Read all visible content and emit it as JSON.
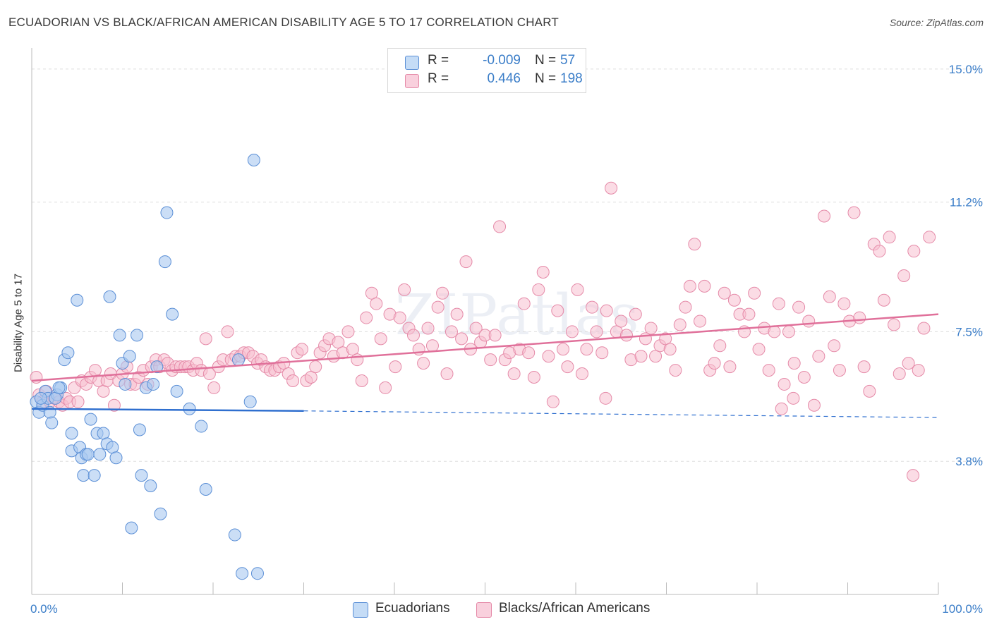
{
  "title": "ECUADORIAN VS BLACK/AFRICAN AMERICAN DISABILITY AGE 5 TO 17 CORRELATION CHART",
  "source": "Source: ZipAtlas.com",
  "watermark": "ZIPatlas",
  "legend": {
    "rows": [
      {
        "r_label": "R =",
        "r_value": "-0.009",
        "n_label": "N =",
        "n_value": "57"
      },
      {
        "r_label": "R =",
        "r_value": "0.446",
        "n_label": "N =",
        "n_value": "198"
      }
    ]
  },
  "bottom_legend": {
    "ecuadorians": "Ecuadorians",
    "blacks": "Blacks/African Americans"
  },
  "colors": {
    "blue_fill": "#a8c8f0",
    "blue_stroke": "#5b8fd6",
    "blue_line": "#2f6fcf",
    "pink_fill": "#f7c0d0",
    "pink_stroke": "#e58aa8",
    "pink_line": "#e0709a",
    "axis_label": "#3a7dc8",
    "grid": "#dddddd"
  },
  "chart_data": {
    "type": "scatter",
    "title": "ECUADORIAN VS BLACK/AFRICAN AMERICAN DISABILITY AGE 5 TO 17 CORRELATION CHART",
    "xlabel": "",
    "ylabel": "Disability Age 5 to 17",
    "xlim": [
      0,
      100
    ],
    "ylim": [
      0,
      15.4
    ],
    "x_tick_labels": [
      "0.0%",
      "100.0%"
    ],
    "y_ticks": [
      3.8,
      7.5,
      11.2,
      15.0
    ],
    "y_tick_labels": [
      "3.8%",
      "7.5%",
      "11.2%",
      "15.0%"
    ],
    "grid": true,
    "legend_placement": "top-center",
    "series": [
      {
        "name": "Ecuadorians",
        "trend": {
          "x": [
            0,
            30
          ],
          "y": [
            5.3,
            5.24
          ],
          "dashed_to": [
            100,
            5.05
          ]
        },
        "points": [
          [
            0.5,
            5.5
          ],
          [
            0.8,
            5.2
          ],
          [
            1.2,
            5.4
          ],
          [
            1.5,
            5.8
          ],
          [
            1.8,
            5.6
          ],
          [
            2,
            5.2
          ],
          [
            2.2,
            4.9
          ],
          [
            2.8,
            5.7
          ],
          [
            3.2,
            5.9
          ],
          [
            3.6,
            6.7
          ],
          [
            4.0,
            6.9
          ],
          [
            4.4,
            4.6
          ],
          [
            4.4,
            4.1
          ],
          [
            5.0,
            8.4
          ],
          [
            5.3,
            4.2
          ],
          [
            5.5,
            3.9
          ],
          [
            5.7,
            3.4
          ],
          [
            6.0,
            4.0
          ],
          [
            6.2,
            4.0
          ],
          [
            6.5,
            5.0
          ],
          [
            6.9,
            3.4
          ],
          [
            7.2,
            4.6
          ],
          [
            7.5,
            4.0
          ],
          [
            7.9,
            4.6
          ],
          [
            8.3,
            4.3
          ],
          [
            8.6,
            8.5
          ],
          [
            8.9,
            4.2
          ],
          [
            9.3,
            3.9
          ],
          [
            9.7,
            7.4
          ],
          [
            10.0,
            6.6
          ],
          [
            10.3,
            6.0
          ],
          [
            10.8,
            6.8
          ],
          [
            11.0,
            1.9
          ],
          [
            11.6,
            7.4
          ],
          [
            11.9,
            4.7
          ],
          [
            12.1,
            3.4
          ],
          [
            12.6,
            5.9
          ],
          [
            13.1,
            3.1
          ],
          [
            13.4,
            6.0
          ],
          [
            13.8,
            6.5
          ],
          [
            14.2,
            2.3
          ],
          [
            14.7,
            9.5
          ],
          [
            14.9,
            10.9
          ],
          [
            15.5,
            8.0
          ],
          [
            16.0,
            5.8
          ],
          [
            17.4,
            5.3
          ],
          [
            18.7,
            4.8
          ],
          [
            19.2,
            3.0
          ],
          [
            22.4,
            1.7
          ],
          [
            22.8,
            6.7
          ],
          [
            23.2,
            0.6
          ],
          [
            24.1,
            5.5
          ],
          [
            24.5,
            12.4
          ],
          [
            24.9,
            0.6
          ],
          [
            1.0,
            5.6
          ],
          [
            2.6,
            5.6
          ],
          [
            3.0,
            5.9
          ]
        ]
      },
      {
        "name": "Blacks/African Americans",
        "trend": {
          "x": [
            0,
            100
          ],
          "y": [
            6.1,
            8.0
          ]
        },
        "points": [
          [
            0.5,
            6.2
          ],
          [
            0.8,
            5.7
          ],
          [
            1.2,
            5.5
          ],
          [
            1.6,
            5.8
          ],
          [
            2.0,
            5.5
          ],
          [
            2.5,
            5.6
          ],
          [
            3.0,
            5.5
          ],
          [
            3.4,
            5.4
          ],
          [
            3.8,
            5.6
          ],
          [
            4.2,
            5.5
          ],
          [
            4.7,
            5.9
          ],
          [
            5.1,
            5.5
          ],
          [
            5.5,
            6.1
          ],
          [
            6.0,
            6.0
          ],
          [
            6.5,
            6.2
          ],
          [
            7.0,
            6.4
          ],
          [
            7.4,
            6.1
          ],
          [
            7.9,
            5.8
          ],
          [
            8.3,
            6.1
          ],
          [
            8.7,
            6.3
          ],
          [
            9.1,
            5.4
          ],
          [
            9.6,
            6.1
          ],
          [
            10.0,
            6.3
          ],
          [
            10.5,
            6.5
          ],
          [
            10.9,
            6.0
          ],
          [
            11.4,
            6.0
          ],
          [
            11.8,
            6.2
          ],
          [
            12.3,
            6.4
          ],
          [
            12.8,
            6.0
          ],
          [
            13.2,
            6.5
          ],
          [
            13.7,
            6.7
          ],
          [
            14.1,
            6.5
          ],
          [
            14.6,
            6.7
          ],
          [
            15.0,
            6.6
          ],
          [
            15.5,
            6.4
          ],
          [
            15.9,
            6.5
          ],
          [
            16.4,
            6.5
          ],
          [
            16.9,
            6.5
          ],
          [
            17.3,
            6.5
          ],
          [
            17.8,
            6.4
          ],
          [
            18.2,
            6.6
          ],
          [
            18.7,
            6.4
          ],
          [
            19.2,
            7.3
          ],
          [
            19.6,
            6.3
          ],
          [
            20.1,
            5.9
          ],
          [
            20.6,
            6.5
          ],
          [
            21.1,
            6.7
          ],
          [
            21.6,
            7.5
          ],
          [
            22.0,
            6.7
          ],
          [
            22.5,
            6.8
          ],
          [
            23.0,
            6.8
          ],
          [
            23.4,
            6.9
          ],
          [
            23.9,
            6.9
          ],
          [
            24.4,
            6.8
          ],
          [
            24.9,
            6.6
          ],
          [
            25.3,
            6.7
          ],
          [
            25.8,
            6.5
          ],
          [
            26.3,
            6.4
          ],
          [
            26.8,
            6.4
          ],
          [
            27.3,
            6.5
          ],
          [
            27.8,
            6.6
          ],
          [
            28.3,
            6.3
          ],
          [
            28.8,
            6.1
          ],
          [
            29.3,
            6.9
          ],
          [
            29.8,
            7.0
          ],
          [
            30.3,
            6.1
          ],
          [
            30.8,
            6.2
          ],
          [
            31.3,
            6.5
          ],
          [
            31.8,
            6.9
          ],
          [
            32.3,
            7.1
          ],
          [
            32.8,
            7.3
          ],
          [
            33.3,
            6.8
          ],
          [
            33.8,
            7.2
          ],
          [
            34.3,
            6.9
          ],
          [
            34.9,
            7.5
          ],
          [
            35.4,
            7.0
          ],
          [
            35.9,
            6.7
          ],
          [
            36.4,
            6.1
          ],
          [
            36.9,
            7.9
          ],
          [
            37.5,
            8.6
          ],
          [
            38.0,
            8.3
          ],
          [
            38.5,
            7.3
          ],
          [
            39.0,
            5.9
          ],
          [
            39.5,
            8.0
          ],
          [
            40.1,
            6.5
          ],
          [
            40.6,
            7.9
          ],
          [
            41.1,
            8.7
          ],
          [
            41.6,
            7.6
          ],
          [
            42.1,
            7.4
          ],
          [
            42.7,
            7.0
          ],
          [
            43.2,
            6.6
          ],
          [
            43.7,
            7.6
          ],
          [
            44.2,
            7.1
          ],
          [
            44.8,
            8.2
          ],
          [
            45.3,
            8.6
          ],
          [
            45.8,
            6.3
          ],
          [
            46.3,
            7.5
          ],
          [
            46.9,
            8.0
          ],
          [
            47.4,
            7.3
          ],
          [
            47.9,
            9.5
          ],
          [
            48.4,
            7.0
          ],
          [
            49.0,
            7.6
          ],
          [
            49.5,
            7.2
          ],
          [
            50.0,
            7.4
          ],
          [
            50.6,
            6.7
          ],
          [
            51.1,
            7.4
          ],
          [
            51.6,
            10.5
          ],
          [
            52.2,
            6.7
          ],
          [
            52.7,
            6.9
          ],
          [
            53.2,
            6.3
          ],
          [
            53.8,
            7.0
          ],
          [
            54.3,
            8.3
          ],
          [
            54.8,
            6.9
          ],
          [
            55.4,
            6.2
          ],
          [
            55.9,
            8.7
          ],
          [
            56.4,
            9.2
          ],
          [
            57.0,
            6.8
          ],
          [
            57.5,
            5.5
          ],
          [
            58.0,
            8.1
          ],
          [
            58.6,
            7.0
          ],
          [
            59.1,
            6.5
          ],
          [
            59.6,
            7.5
          ],
          [
            60.2,
            8.7
          ],
          [
            60.7,
            6.3
          ],
          [
            61.2,
            7.0
          ],
          [
            61.8,
            8.2
          ],
          [
            62.3,
            7.5
          ],
          [
            62.9,
            6.9
          ],
          [
            63.4,
            8.1
          ],
          [
            63.9,
            11.6
          ],
          [
            64.5,
            7.5
          ],
          [
            65.0,
            7.8
          ],
          [
            65.6,
            7.4
          ],
          [
            66.1,
            6.7
          ],
          [
            66.6,
            8.0
          ],
          [
            67.2,
            6.8
          ],
          [
            67.7,
            7.3
          ],
          [
            68.3,
            7.6
          ],
          [
            68.8,
            6.8
          ],
          [
            69.3,
            7.1
          ],
          [
            69.9,
            7.3
          ],
          [
            70.4,
            7.0
          ],
          [
            71.0,
            6.4
          ],
          [
            71.5,
            7.7
          ],
          [
            72.1,
            8.2
          ],
          [
            72.6,
            8.8
          ],
          [
            73.1,
            10.0
          ],
          [
            73.7,
            7.8
          ],
          [
            74.2,
            8.8
          ],
          [
            74.8,
            6.4
          ],
          [
            75.3,
            6.6
          ],
          [
            75.9,
            7.1
          ],
          [
            76.4,
            8.6
          ],
          [
            77.0,
            6.5
          ],
          [
            77.5,
            8.4
          ],
          [
            78.1,
            8.0
          ],
          [
            78.6,
            7.5
          ],
          [
            79.1,
            8.0
          ],
          [
            79.7,
            8.6
          ],
          [
            80.2,
            7.0
          ],
          [
            80.8,
            7.6
          ],
          [
            81.3,
            6.4
          ],
          [
            81.9,
            7.5
          ],
          [
            82.4,
            8.3
          ],
          [
            83.0,
            6.0
          ],
          [
            83.5,
            7.5
          ],
          [
            84.1,
            6.6
          ],
          [
            84.6,
            8.2
          ],
          [
            85.2,
            6.2
          ],
          [
            85.7,
            7.8
          ],
          [
            86.3,
            5.4
          ],
          [
            86.8,
            6.8
          ],
          [
            87.4,
            10.8
          ],
          [
            88.0,
            8.5
          ],
          [
            88.5,
            7.1
          ],
          [
            89.1,
            6.4
          ],
          [
            89.6,
            8.3
          ],
          [
            90.2,
            7.8
          ],
          [
            90.7,
            10.9
          ],
          [
            91.3,
            7.9
          ],
          [
            91.8,
            6.5
          ],
          [
            92.4,
            5.8
          ],
          [
            92.9,
            10.0
          ],
          [
            93.5,
            9.8
          ],
          [
            94.0,
            8.4
          ],
          [
            94.6,
            10.2
          ],
          [
            95.1,
            7.7
          ],
          [
            95.7,
            6.3
          ],
          [
            96.2,
            9.1
          ],
          [
            96.7,
            6.6
          ],
          [
            97.3,
            9.8
          ],
          [
            97.8,
            6.4
          ],
          [
            98.4,
            7.6
          ],
          [
            99.0,
            10.2
          ],
          [
            97.2,
            3.4
          ],
          [
            63.3,
            5.6
          ],
          [
            82.7,
            5.3
          ],
          [
            84.0,
            5.6
          ]
        ]
      }
    ]
  }
}
